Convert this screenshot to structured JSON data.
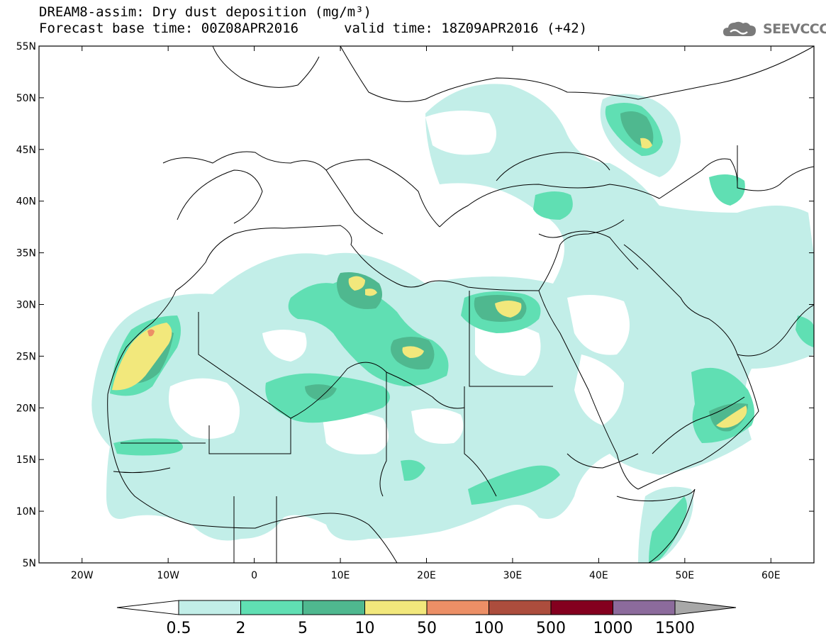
{
  "title": {
    "line1": "DREAM8-assim: Dry dust deposition (mg/m³)",
    "base_time": "Forecast base time: 00Z08APR2016",
    "valid_time": "valid time: 18Z09APR2016 (+42)"
  },
  "logo": {
    "text": "SEEVCCC",
    "icon": "cloud-logo-icon"
  },
  "map": {
    "lon_range": [
      -25,
      65
    ],
    "lat_range": [
      5,
      55
    ],
    "lon_ticks": [
      "20W",
      "10W",
      "0",
      "10E",
      "20E",
      "30E",
      "40E",
      "50E",
      "60E"
    ],
    "lat_ticks": [
      "55N",
      "50N",
      "45N",
      "40N",
      "35N",
      "30N",
      "25N",
      "20N",
      "15N",
      "10N",
      "5N"
    ]
  },
  "colorbar": {
    "labels": [
      "0.5",
      "2",
      "5",
      "10",
      "50",
      "100",
      "500",
      "1000",
      "1500"
    ],
    "colors": [
      "#c2eee8",
      "#60dfb3",
      "#4fb88f",
      "#f2e87c",
      "#ec8f66",
      "#ac4d3d",
      "#84001f",
      "#8c6b9c"
    ],
    "under_color": "#ffffff",
    "over_color": "#a8a8a8"
  }
}
